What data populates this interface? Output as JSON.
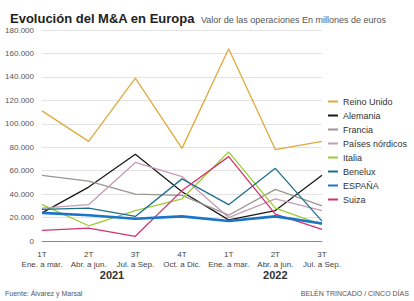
{
  "chart_data": {
    "type": "line",
    "title": "Evolución del M&A en Europa",
    "subtitle": "Valor de las operaciones En millones de euros",
    "categories": [
      "1T\nEne. a mar.",
      "2T\nAbr. a jun.",
      "3T\nJul. a Sep.",
      "4T\nOct. a Dic.",
      "1T\nEne. a mar.",
      "2T\nAbr. a jun.",
      "3T\nJul. a Sep."
    ],
    "annotations": [
      "2021",
      "2022"
    ],
    "source": "Fuente: Álvarez y Marsal",
    "credit": "BELÉN TRINCADO / CINCO DÍAS",
    "series": [
      {
        "name": "Reino Unido",
        "color": "#e0a93b",
        "values": [
          111000,
          85000,
          139000,
          79000,
          164000,
          78000,
          85000
        ]
      },
      {
        "name": "Alemania",
        "color": "#1a1a1a",
        "values": [
          24000,
          46000,
          74000,
          42000,
          18000,
          26000,
          56000
        ]
      },
      {
        "name": "Francia",
        "color": "#9a9590",
        "values": [
          56000,
          51000,
          40000,
          39000,
          22000,
          44000,
          30000
        ]
      },
      {
        "name": "Países nórdicos",
        "color": "#c79ab5",
        "values": [
          28000,
          31000,
          67000,
          55000,
          20000,
          36000,
          26000
        ]
      },
      {
        "name": "Italia",
        "color": "#9acd32",
        "values": [
          31000,
          13000,
          26000,
          36000,
          76000,
          28000,
          14000
        ]
      },
      {
        "name": "Benelux",
        "color": "#1f6f8b",
        "values": [
          27000,
          28000,
          21000,
          53000,
          31000,
          62000,
          17000
        ]
      },
      {
        "name": "ESPAÑA",
        "color": "#1a75c9",
        "values": [
          24000,
          22000,
          19000,
          21000,
          17000,
          21000,
          15000
        ]
      },
      {
        "name": "Suiza",
        "color": "#d6336c",
        "values": [
          9000,
          11000,
          4000,
          43000,
          72000,
          23000,
          10000
        ]
      }
    ],
    "ylim": [
      0,
      180000
    ],
    "yticks": [
      0,
      {
        "value": 20000,
        "label": "20.000"
      },
      {
        "value": 40000,
        "label": "40.000"
      },
      {
        "value": 60000,
        "label": "60.000"
      },
      {
        "value": 80000,
        "label": "80.000"
      },
      {
        "value": 100000,
        "label": "100.000"
      },
      {
        "value": 120000,
        "label": "120.000"
      },
      {
        "value": 140000,
        "label": "140.000"
      },
      {
        "value": 160000,
        "label": "160.000"
      },
      {
        "value": 180000,
        "label": "180.000"
      }
    ],
    "grid": true,
    "legend": "right"
  }
}
